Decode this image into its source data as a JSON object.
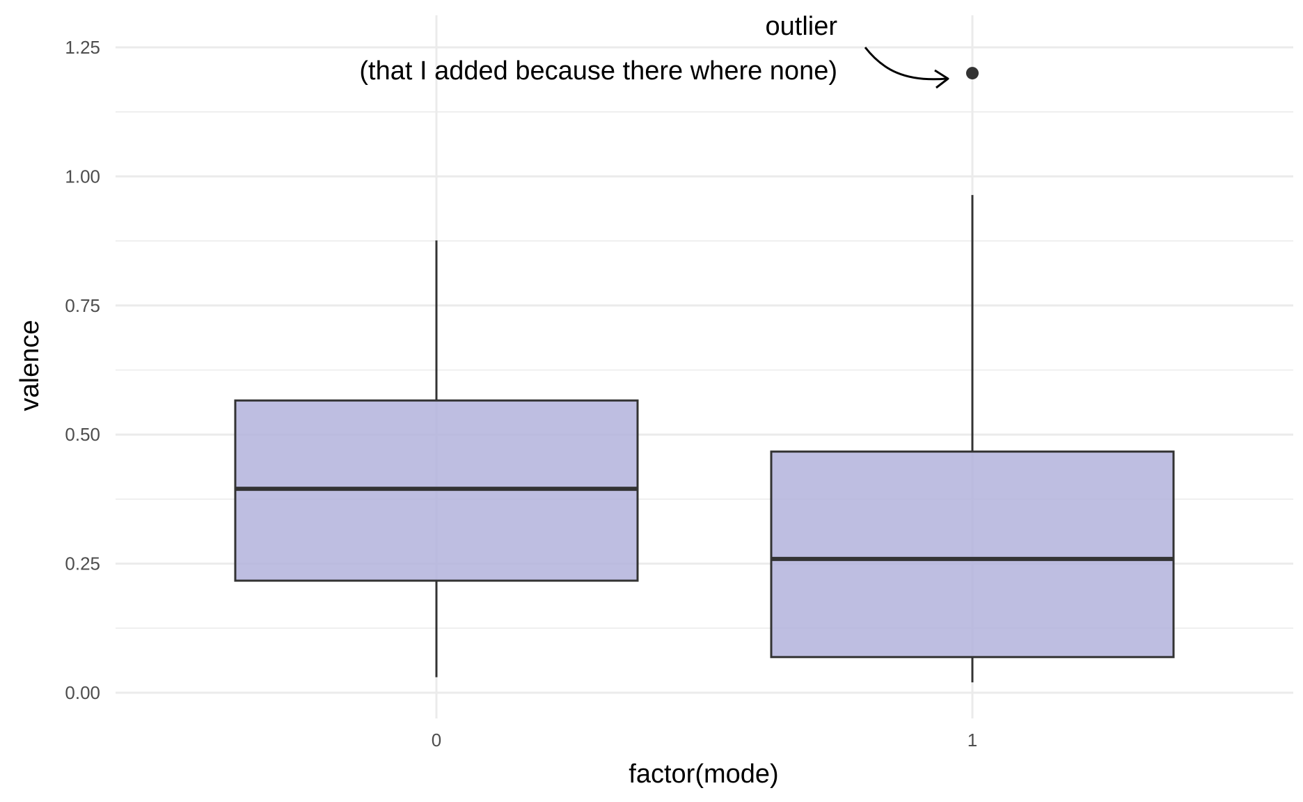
{
  "chart_data": {
    "type": "boxplot",
    "title": "",
    "xlabel": "factor(mode)",
    "ylabel": "valence",
    "categories": [
      "0",
      "1"
    ],
    "ylim": [
      0.0,
      1.25
    ],
    "yticks": [
      "0.00",
      "0.25",
      "0.50",
      "0.75",
      "1.00",
      "1.25"
    ],
    "grid": true,
    "boxes": [
      {
        "category": "0",
        "whisker_low": 0.03,
        "q1": 0.217,
        "median": 0.395,
        "q3": 0.566,
        "whisker_high": 0.876
      },
      {
        "category": "1",
        "whisker_low": 0.02,
        "q1": 0.069,
        "median": 0.259,
        "q3": 0.467,
        "whisker_high": 0.964,
        "outliers": [
          1.2
        ]
      }
    ],
    "annotation": {
      "line1": "outlier",
      "line2": "(that I added because there where none)"
    },
    "colors": {
      "box_fill": "#b3b3dc",
      "box_stroke": "#333333",
      "grid": "#ebebeb",
      "point": "#333333"
    }
  }
}
